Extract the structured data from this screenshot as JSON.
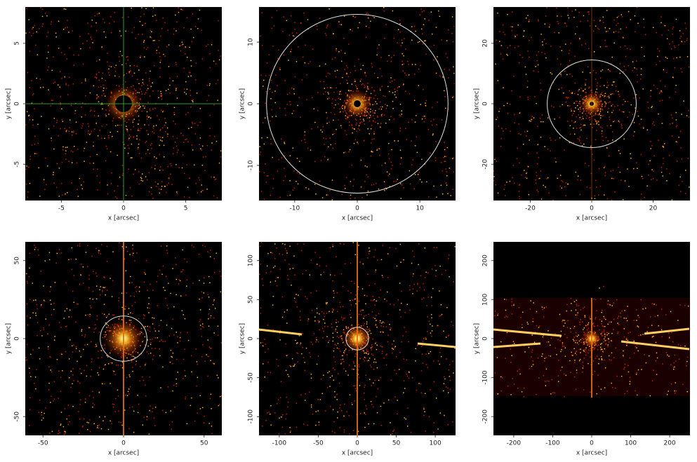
{
  "chart_data": [
    {
      "type": "image",
      "xlabel": "x [arcsec]",
      "ylabel": "y [arcsec]",
      "xlim": [
        -7.9,
        7.9
      ],
      "ylim": [
        -8,
        8
      ],
      "xticks": [
        -5,
        0,
        5
      ],
      "yticks": [
        -5,
        0,
        5
      ],
      "crosshair": true
    },
    {
      "type": "image",
      "xlabel": "x [arcsec]",
      "ylabel": "y [arcsec]",
      "xlim": [
        -15.7,
        15.7
      ],
      "ylim": [
        -15.7,
        15.7
      ],
      "xticks": [
        -10,
        0,
        10
      ],
      "yticks": [
        -10,
        0,
        10
      ],
      "circle_radius": 14.5
    },
    {
      "type": "image",
      "xlabel": "x [arcsec]",
      "ylabel": "y [arcsec]",
      "xlim": [
        -32,
        32
      ],
      "ylim": [
        -32,
        32
      ],
      "xticks": [
        -20,
        0,
        20
      ],
      "yticks": [
        -20,
        0,
        20
      ],
      "circle_radius": 14.5
    },
    {
      "type": "image",
      "xlabel": "x [arcsec]",
      "ylabel": "y [arcsec]",
      "xlim": [
        -61,
        61
      ],
      "ylim": [
        -62,
        62
      ],
      "xticks": [
        -50,
        0,
        50
      ],
      "yticks": [
        -50,
        0,
        50
      ],
      "circle_radius": 14.5
    },
    {
      "type": "image",
      "xlabel": "x [arcsec]",
      "ylabel": "y [arcsec]",
      "xlim": [
        -126,
        126
      ],
      "ylim": [
        -124,
        124
      ],
      "xticks": [
        -100,
        -50,
        0,
        50,
        100
      ],
      "yticks": [
        -100,
        -50,
        0,
        50,
        100
      ],
      "circle_radius": 14.5
    },
    {
      "type": "image",
      "xlabel": "x [arcsec]",
      "ylabel": "y [arcsec]",
      "xlim": [
        -252,
        252
      ],
      "ylim": [
        -248,
        248
      ],
      "xticks": [
        -200,
        -100,
        0,
        100,
        200
      ],
      "yticks": [
        -200,
        -100,
        0,
        100,
        200
      ]
    }
  ]
}
